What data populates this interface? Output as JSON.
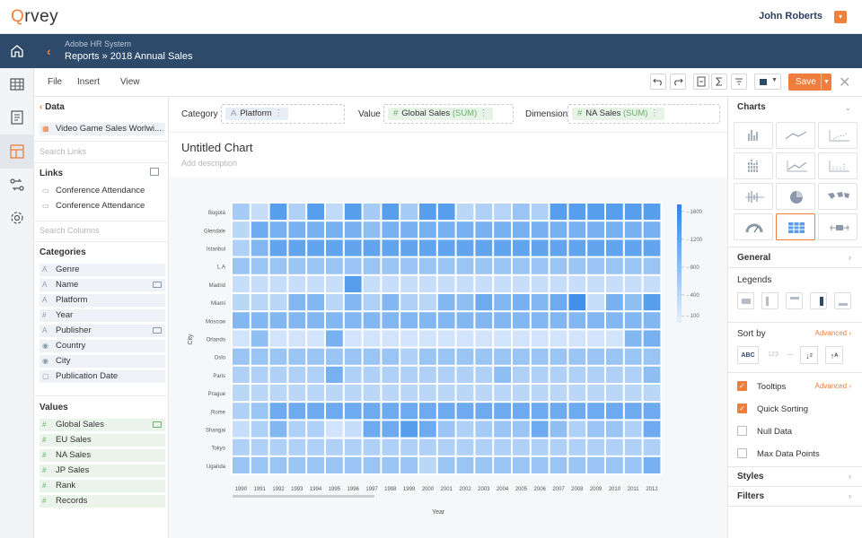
{
  "app": {
    "logo_text": "rvey",
    "user_name": "John Roberts"
  },
  "breadcrumb": {
    "system": "Adobe HR System",
    "path": "Reports  » 2018 Annual Sales"
  },
  "menu": [
    "File",
    "Insert",
    "View"
  ],
  "toolbar": {
    "save_label": "Save",
    "color": "#2d4a6b"
  },
  "left_panel": {
    "data_heading": "Data",
    "dataset": "Video Game Sales Worlwi...",
    "search_links_placeholder": "Search Links",
    "links_heading": "Links",
    "links": [
      "Conference Attendance",
      "Conference Attendance"
    ],
    "search_columns_placeholder": "Search Columns",
    "categories_heading": "Categories",
    "categories": [
      {
        "type": "A",
        "label": "Genre"
      },
      {
        "type": "A",
        "label": "Name"
      },
      {
        "type": "A",
        "label": "Platform"
      },
      {
        "type": "#",
        "label": "Year"
      },
      {
        "type": "A",
        "label": "Publisher"
      },
      {
        "type": "pin",
        "label": "Country"
      },
      {
        "type": "pin",
        "label": "City"
      },
      {
        "type": "date",
        "label": "Publication Date"
      }
    ],
    "values_heading": "Values",
    "values": [
      {
        "type": "#",
        "label": "Global Sales"
      },
      {
        "type": "#",
        "label": "EU Sales"
      },
      {
        "type": "#",
        "label": "NA Sales"
      },
      {
        "type": "#",
        "label": "JP Sales"
      },
      {
        "type": "#",
        "label": "Rank"
      },
      {
        "type": "#",
        "label": "Records"
      }
    ]
  },
  "shelves": {
    "category_label": "Category",
    "category_pill_type": "A",
    "category_pill": "Platform",
    "value_label": "Value",
    "value_pill_type": "#",
    "value_pill": "Global Sales",
    "value_agg": "(SUM)",
    "dimension_label": "Dimension",
    "dimension_pill_type": "#",
    "dimension_pill": "NA Sales",
    "dimension_agg": "(SUM)"
  },
  "chart_header": {
    "title": "Untitled Chart",
    "description_placeholder": "Add description"
  },
  "right_panel": {
    "charts_heading": "Charts",
    "general": "General",
    "legends": "Legends",
    "sort_by": "Sort by",
    "advanced": "Advanced",
    "sort_abc": "ABC",
    "sort_123": "123",
    "options": [
      {
        "label": "Tooltips",
        "checked": true,
        "advanced": true
      },
      {
        "label": "Quick Sorting",
        "checked": true,
        "advanced": false
      },
      {
        "label": "Null Data",
        "checked": false,
        "advanced": false
      },
      {
        "label": "Max Data Points",
        "checked": false,
        "advanced": false
      }
    ],
    "styles": "Styles",
    "filters": "Filters"
  },
  "chart_data": {
    "type": "heatmap",
    "xlabel": "Year",
    "ylabel": "City",
    "x": [
      "1990",
      "1991",
      "1992",
      "1993",
      "1994",
      "1995",
      "1996",
      "1997",
      "1998",
      "1999",
      "2000",
      "2001",
      "2002",
      "2003",
      "2004",
      "2005",
      "2006",
      "2007",
      "2008",
      "2009",
      "2010",
      "2011",
      "2012"
    ],
    "y": [
      "Bogotá",
      "Glendale",
      "Istanbul",
      "L.A",
      "Madrid",
      "Miami",
      "Moscow",
      "Orlando",
      "Oslo",
      "Paris",
      "Prague",
      "Rome",
      "Shangai",
      "Tokyo",
      "Uganda"
    ],
    "colorbar_ticks": [
      100,
      400,
      800,
      1200,
      1600
    ],
    "color_range": [
      0,
      1700
    ],
    "colors": {
      "low": "#e7f1fd",
      "high": "#2b84e8"
    },
    "values": [
      [
        600,
        300,
        1300,
        500,
        1300,
        350,
        1300,
        600,
        1300,
        600,
        1300,
        1300,
        400,
        500,
        450,
        700,
        500,
        1300,
        1300,
        1300,
        1300,
        1300,
        1300
      ],
      [
        400,
        1100,
        1000,
        1000,
        1000,
        1000,
        1000,
        800,
        1000,
        1000,
        1000,
        1000,
        1000,
        1000,
        1000,
        1000,
        1000,
        1000,
        1000,
        1000,
        1000,
        1000,
        1000
      ],
      [
        500,
        900,
        1200,
        1200,
        1200,
        1200,
        1200,
        1200,
        1200,
        1200,
        1200,
        1200,
        1200,
        1200,
        1200,
        1200,
        1200,
        1200,
        1200,
        1200,
        1200,
        1200,
        1200
      ],
      [
        700,
        700,
        700,
        700,
        700,
        700,
        700,
        700,
        700,
        700,
        700,
        700,
        700,
        700,
        700,
        700,
        700,
        700,
        700,
        700,
        700,
        700,
        700
      ],
      [
        300,
        300,
        300,
        300,
        300,
        300,
        1300,
        300,
        300,
        300,
        300,
        300,
        300,
        300,
        300,
        300,
        300,
        300,
        300,
        300,
        300,
        300,
        300
      ],
      [
        400,
        400,
        400,
        900,
        900,
        400,
        900,
        500,
        900,
        500,
        400,
        900,
        800,
        1100,
        900,
        1000,
        900,
        1100,
        1500,
        300,
        1000,
        800,
        1300
      ],
      [
        900,
        900,
        900,
        900,
        900,
        900,
        900,
        900,
        900,
        900,
        900,
        900,
        900,
        900,
        900,
        900,
        900,
        900,
        900,
        900,
        900,
        900,
        900
      ],
      [
        200,
        800,
        200,
        200,
        200,
        1000,
        200,
        200,
        200,
        200,
        200,
        200,
        200,
        200,
        200,
        200,
        200,
        200,
        200,
        200,
        200,
        900,
        1000
      ],
      [
        700,
        700,
        700,
        700,
        700,
        700,
        700,
        700,
        700,
        500,
        700,
        700,
        700,
        700,
        700,
        700,
        700,
        700,
        700,
        700,
        700,
        700,
        700
      ],
      [
        500,
        500,
        500,
        500,
        500,
        1000,
        500,
        500,
        500,
        500,
        500,
        500,
        500,
        500,
        800,
        500,
        500,
        500,
        500,
        500,
        500,
        500,
        800
      ],
      [
        400,
        400,
        400,
        400,
        400,
        400,
        400,
        400,
        400,
        400,
        400,
        400,
        400,
        400,
        400,
        400,
        400,
        400,
        400,
        400,
        400,
        400,
        400
      ],
      [
        500,
        700,
        1100,
        1100,
        1100,
        1100,
        1100,
        1100,
        1100,
        1100,
        1100,
        1100,
        1100,
        1100,
        1100,
        1100,
        1100,
        1100,
        1100,
        1100,
        1100,
        1100,
        1100
      ],
      [
        300,
        500,
        900,
        500,
        500,
        200,
        300,
        1100,
        1100,
        1300,
        1100,
        700,
        500,
        600,
        700,
        700,
        1100,
        800,
        500,
        700,
        700,
        500,
        1100
      ],
      [
        500,
        500,
        500,
        500,
        500,
        500,
        500,
        500,
        500,
        500,
        500,
        500,
        500,
        500,
        500,
        500,
        500,
        500,
        500,
        500,
        500,
        500,
        500
      ],
      [
        700,
        700,
        700,
        700,
        700,
        700,
        700,
        700,
        700,
        700,
        400,
        700,
        700,
        700,
        700,
        700,
        700,
        700,
        700,
        700,
        700,
        700,
        1000
      ]
    ]
  }
}
